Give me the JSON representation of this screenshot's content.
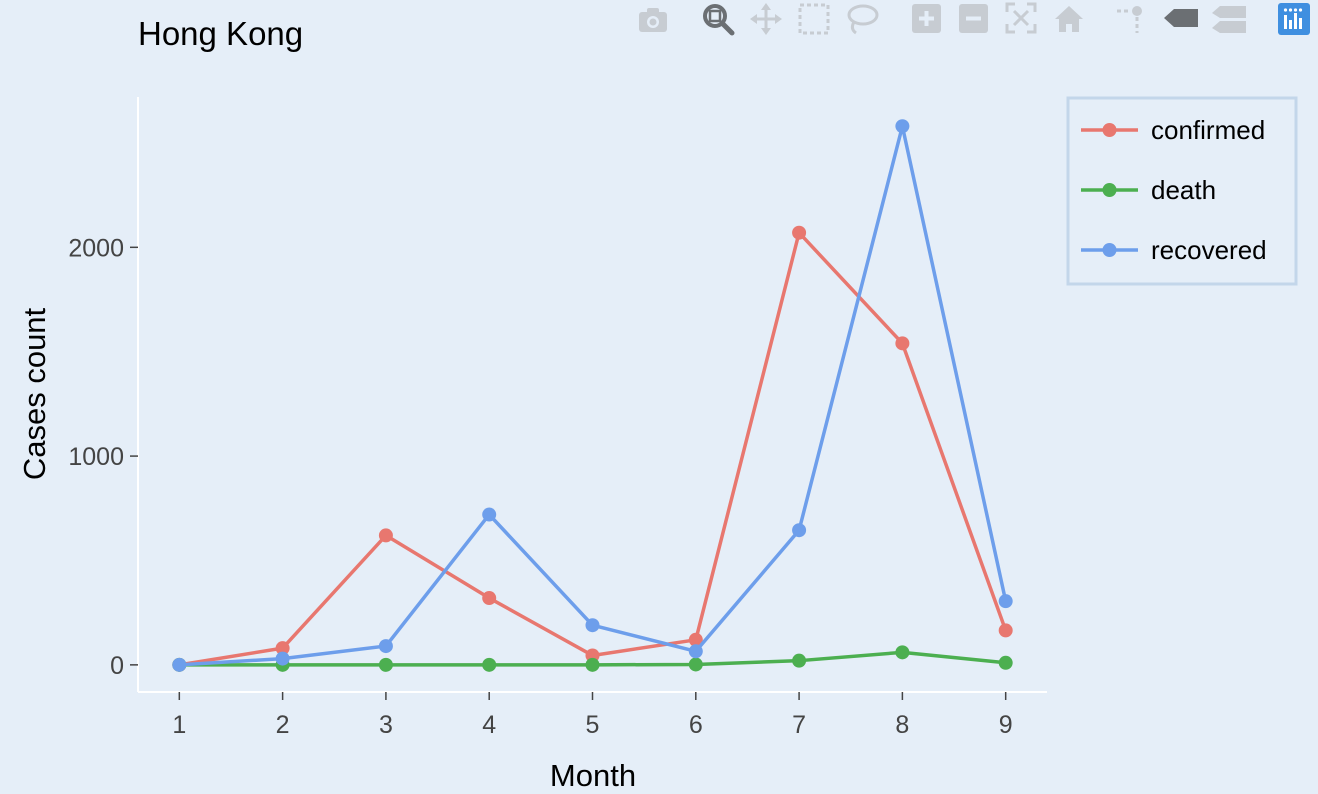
{
  "chart_data": {
    "type": "line",
    "title": "Hong Kong",
    "xlabel": "Month",
    "ylabel": "Cases count",
    "x": [
      1,
      2,
      3,
      4,
      5,
      6,
      7,
      8,
      9
    ],
    "xticks": [
      "1",
      "2",
      "3",
      "4",
      "5",
      "6",
      "7",
      "8",
      "9"
    ],
    "yticks": [
      0,
      1000,
      2000
    ],
    "ytick_labels": [
      "0",
      "1000",
      "2000"
    ],
    "ylim": [
      -130,
      2720
    ],
    "xlim": [
      0.6,
      9.4
    ],
    "grid": false,
    "legend_position": "top-right",
    "series": [
      {
        "name": "confirmed",
        "color": "#e8776f",
        "values": [
          0,
          80,
          620,
          320,
          45,
          120,
          2070,
          1540,
          165
        ]
      },
      {
        "name": "death",
        "color": "#4caf50",
        "values": [
          0,
          0,
          0,
          0,
          0,
          2,
          20,
          60,
          10
        ]
      },
      {
        "name": "recovered",
        "color": "#6d9eeb",
        "values": [
          0,
          30,
          90,
          720,
          190,
          65,
          645,
          2580,
          305
        ]
      }
    ]
  },
  "toolbar": {
    "buttons": [
      {
        "name": "download-plot-icon",
        "label": "Download plot as a png"
      },
      {
        "name": "zoom-icon",
        "label": "Zoom"
      },
      {
        "name": "pan-icon",
        "label": "Pan"
      },
      {
        "name": "box-select-icon",
        "label": "Box Select"
      },
      {
        "name": "lasso-select-icon",
        "label": "Lasso Select"
      },
      {
        "name": "zoom-in-icon",
        "label": "Zoom in"
      },
      {
        "name": "zoom-out-icon",
        "label": "Zoom out"
      },
      {
        "name": "autoscale-icon",
        "label": "Autoscale"
      },
      {
        "name": "reset-axes-icon",
        "label": "Reset axes"
      },
      {
        "name": "toggle-spike-lines-icon",
        "label": "Toggle Spike Lines"
      },
      {
        "name": "hover-closest-icon",
        "label": "Show closest data on hover"
      },
      {
        "name": "hover-compare-icon",
        "label": "Compare data on hover"
      },
      {
        "name": "plotly-logo-icon",
        "label": "Produced with Plotly"
      }
    ]
  }
}
